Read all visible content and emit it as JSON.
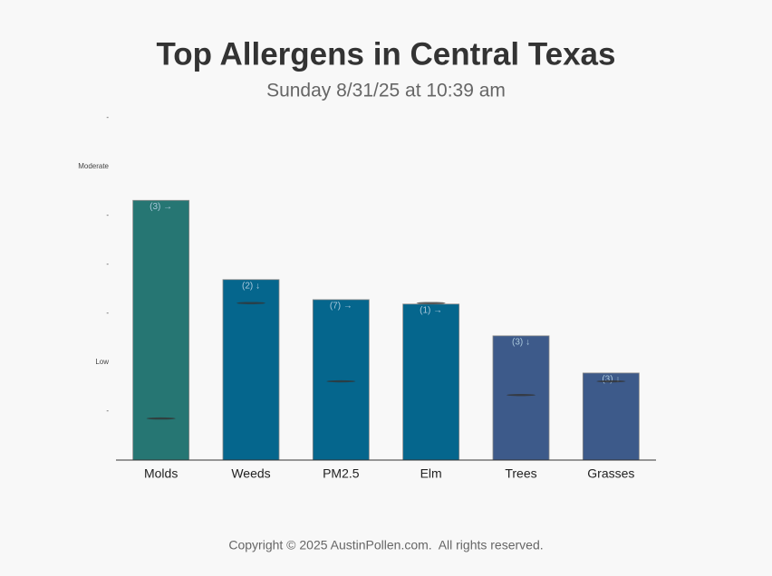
{
  "chart_data": {
    "type": "bar",
    "title": "Top Allergens in Central Texas",
    "subtitle": "Sunday 8/31/25 at 10:39 am",
    "categories": [
      "Molds",
      "Weeds",
      "PM2.5",
      "Elm",
      "Trees",
      "Grasses"
    ],
    "values": [
      5.31,
      3.69,
      3.28,
      3.19,
      2.54,
      1.78
    ],
    "bar_labels": [
      "(3) →",
      "(2) ↓",
      "(7) →",
      "(1) →",
      "(3) ↓",
      "(3) ↓"
    ],
    "marker_values": [
      0.85,
      3.21,
      1.61,
      3.21,
      1.33,
      1.61
    ],
    "colors": [
      "#267673",
      "#05668d",
      "#05668d",
      "#05668d",
      "#3d5a8a",
      "#3d5a8a"
    ],
    "ylim": [
      0,
      7
    ],
    "yticks": [
      {
        "value": 1,
        "label": "-"
      },
      {
        "value": 2,
        "label": "Low"
      },
      {
        "value": 3,
        "label": "-"
      },
      {
        "value": 4,
        "label": "-"
      },
      {
        "value": 5,
        "label": "-"
      },
      {
        "value": 6,
        "label": "Moderate"
      },
      {
        "value": 7,
        "label": "-"
      }
    ],
    "grid": false
  },
  "footer": "Copyright © 2025 AustinPollen.com.  All rights reserved."
}
